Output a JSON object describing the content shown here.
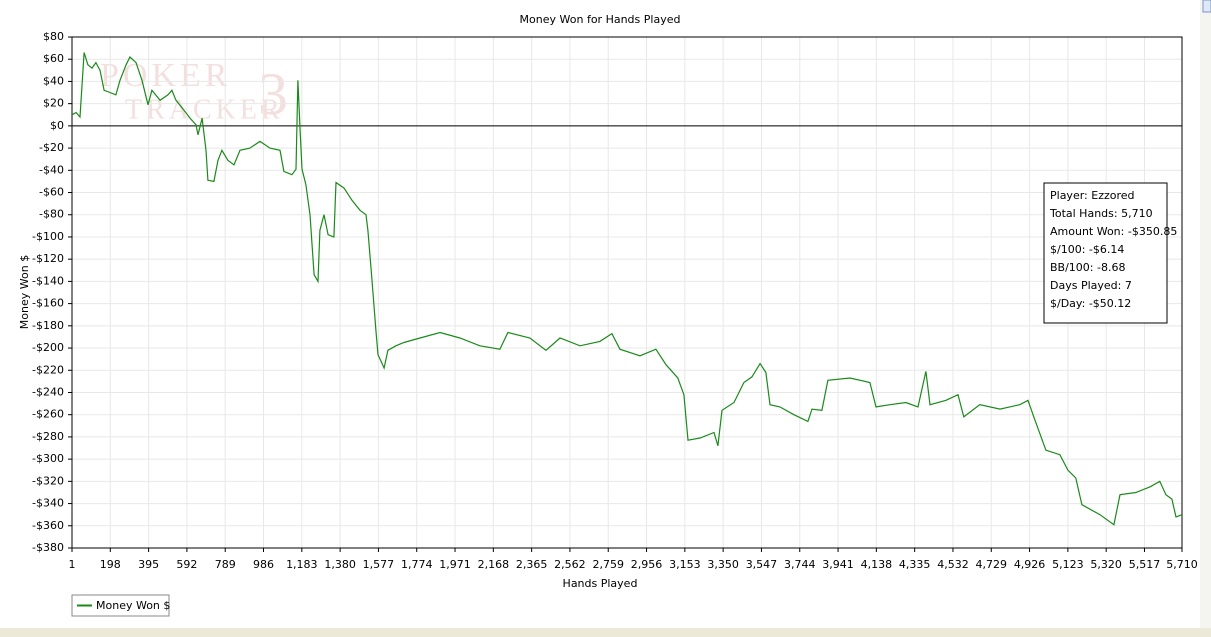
{
  "chart_data": {
    "type": "line",
    "title": "Money Won for Hands Played",
    "x_label": "Hands Played",
    "y_label": "Money Won $",
    "watermark": [
      "POKER",
      "TRACKER",
      "3"
    ],
    "annotations": [
      "Player: Ezzored",
      "Total Hands: 5,710",
      "Amount Won: -$350.85",
      "$/100: -$6.14",
      "BB/100: -8.68",
      "Days Played: 7",
      "$/Day: -$50.12"
    ],
    "x": [
      1,
      22,
      42,
      63,
      83,
      104,
      124,
      145,
      166,
      196,
      227,
      248,
      279,
      299,
      330,
      361,
      392,
      412,
      454,
      495,
      515,
      536,
      577,
      608,
      639,
      649,
      670,
      690,
      700,
      731,
      752,
      772,
      803,
      834,
      865,
      916,
      968,
      1019,
      1071,
      1091,
      1132,
      1153,
      1163,
      1174,
      1184,
      1204,
      1225,
      1246,
      1266,
      1276,
      1297,
      1318,
      1348,
      1359,
      1400,
      1441,
      1482,
      1513,
      1523,
      1544,
      1564,
      1575,
      1606,
      1626,
      1667,
      1708,
      1791,
      1894,
      1996,
      2099,
      2202,
      2243,
      2356,
      2439,
      2511,
      2614,
      2716,
      2778,
      2819,
      2922,
      3004,
      3056,
      3117,
      3148,
      3169,
      3231,
      3303,
      3323,
      3344,
      3406,
      3457,
      3498,
      3540,
      3570,
      3591,
      3642,
      3714,
      3786,
      3807,
      3858,
      3889,
      4002,
      4105,
      4136,
      4208,
      4290,
      4352,
      4393,
      4414,
      4496,
      4558,
      4588,
      4670,
      4774,
      4876,
      4918,
      4948,
      5010,
      5082,
      5123,
      5164,
      5195,
      5288,
      5360,
      5391,
      5473,
      5545,
      5596,
      5627,
      5658,
      5679,
      5710
    ],
    "series": [
      {
        "name": "Money Won $",
        "color": "#1a8a1a",
        "values": [
          10,
          12,
          8,
          66,
          55,
          52,
          57,
          50,
          32,
          30,
          28,
          41,
          55,
          62,
          57,
          41,
          19,
          32,
          23,
          28,
          32,
          23,
          14,
          7,
          1,
          -8,
          7,
          -22,
          -49,
          -50,
          -31,
          -22,
          -31,
          -35,
          -22,
          -20,
          -14,
          -20,
          -22,
          -41,
          -44,
          -39,
          41,
          -4,
          -39,
          -53,
          -80,
          -134,
          -140,
          -94,
          -80,
          -98,
          -100,
          -51,
          -56,
          -67,
          -76,
          -80,
          -94,
          -139,
          -184,
          -206,
          -218,
          -202,
          -198,
          -195,
          -191,
          -186,
          -191,
          -198,
          -201,
          -186,
          -191,
          -202,
          -191,
          -198,
          -194,
          -187,
          -201,
          -207,
          -201,
          -215,
          -227,
          -242,
          -283,
          -281,
          -276,
          -288,
          -256,
          -249,
          -231,
          -226,
          -214,
          -222,
          -251,
          -253,
          -260,
          -266,
          -255,
          -256,
          -229,
          -227,
          -231,
          -253,
          -251,
          -249,
          -253,
          -221,
          -251,
          -247,
          -242,
          -262,
          -251,
          -255,
          -251,
          -247,
          -262,
          -292,
          -296,
          -310,
          -317,
          -341,
          -350,
          -359,
          -332,
          -330,
          -325,
          -320,
          -332,
          -336,
          -352,
          -350
        ]
      }
    ],
    "xlim": [
      1,
      5710
    ],
    "xticks": [
      1,
      198,
      395,
      592,
      789,
      986,
      {
        "value": 1183,
        "label": "1,183"
      },
      {
        "value": 1380,
        "label": "1,380"
      },
      {
        "value": 1577,
        "label": "1,577"
      },
      {
        "value": 1774,
        "label": "1,774"
      },
      {
        "value": 1971,
        "label": "1,971"
      },
      {
        "value": 2168,
        "label": "2,168"
      },
      {
        "value": 2365,
        "label": "2,365"
      },
      {
        "value": 2562,
        "label": "2,562"
      },
      {
        "value": 2759,
        "label": "2,759"
      },
      {
        "value": 2956,
        "label": "2,956"
      },
      {
        "value": 3153,
        "label": "3,153"
      },
      {
        "value": 3350,
        "label": "3,350"
      },
      {
        "value": 3547,
        "label": "3,547"
      },
      {
        "value": 3744,
        "label": "3,744"
      },
      {
        "value": 3941,
        "label": "3,941"
      },
      {
        "value": 4138,
        "label": "4,138"
      },
      {
        "value": 4335,
        "label": "4,335"
      },
      {
        "value": 4532,
        "label": "4,532"
      },
      {
        "value": 4729,
        "label": "4,729"
      },
      {
        "value": 4926,
        "label": "4,926"
      },
      {
        "value": 5123,
        "label": "5,123"
      },
      {
        "value": 5320,
        "label": "5,320"
      },
      {
        "value": 5517,
        "label": "5,517"
      },
      {
        "value": 5710,
        "label": "5,710"
      }
    ],
    "ylim": [
      -380,
      80
    ],
    "yticks": [
      {
        "value": 80,
        "label": "$80"
      },
      {
        "value": 60,
        "label": "$60"
      },
      {
        "value": 40,
        "label": "$40"
      },
      {
        "value": 20,
        "label": "$20"
      },
      {
        "value": 0,
        "label": "$0"
      },
      {
        "value": -20,
        "label": "-$20"
      },
      {
        "value": -40,
        "label": "-$40"
      },
      {
        "value": -60,
        "label": "-$60"
      },
      {
        "value": -80,
        "label": "-$80"
      },
      {
        "value": -100,
        "label": "-$100"
      },
      {
        "value": -120,
        "label": "-$120"
      },
      {
        "value": -140,
        "label": "-$140"
      },
      {
        "value": -160,
        "label": "-$160"
      },
      {
        "value": -180,
        "label": "-$180"
      },
      {
        "value": -200,
        "label": "-$200"
      },
      {
        "value": -220,
        "label": "-$220"
      },
      {
        "value": -240,
        "label": "-$240"
      },
      {
        "value": -260,
        "label": "-$260"
      },
      {
        "value": -280,
        "label": "-$280"
      },
      {
        "value": -300,
        "label": "-$300"
      },
      {
        "value": -320,
        "label": "-$320"
      },
      {
        "value": -340,
        "label": "-$340"
      },
      {
        "value": -360,
        "label": "-$360"
      },
      {
        "value": -380,
        "label": "-$380"
      }
    ],
    "grid": true
  }
}
